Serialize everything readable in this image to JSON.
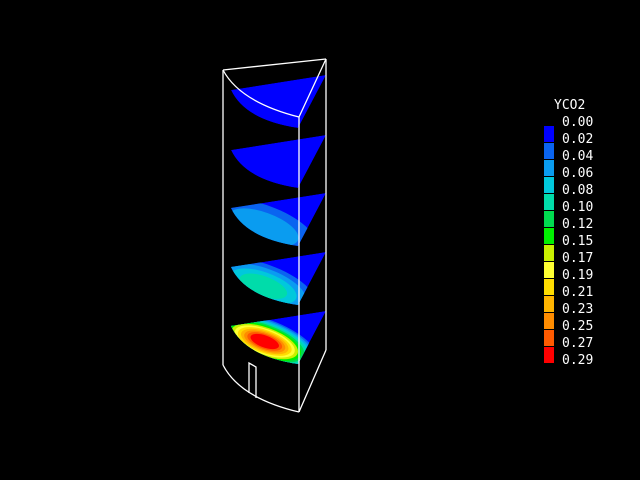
{
  "chart_data": {
    "type": "heatmap",
    "title": "",
    "legend": {
      "title": "YCO2",
      "placement": "right",
      "tick_labels": [
        "0.00",
        "0.02",
        "0.04",
        "0.06",
        "0.08",
        "0.10",
        "0.12",
        "0.15",
        "0.17",
        "0.19",
        "0.21",
        "0.23",
        "0.25",
        "0.27",
        "0.29"
      ],
      "colors": [
        "#0000ff",
        "#0a64f0",
        "#0a9cf0",
        "#00c8dc",
        "#00dcaa",
        "#00dc50",
        "#00f000",
        "#c8f000",
        "#ffff32",
        "#ffdc00",
        "#ffb400",
        "#ff8c00",
        "#ff5a00",
        "#ff0000"
      ],
      "range": [
        0.0,
        0.29
      ]
    },
    "slices": [
      {
        "level": 1,
        "max_value": 0.0
      },
      {
        "level": 2,
        "max_value": 0.0
      },
      {
        "level": 3,
        "max_value": 0.04
      },
      {
        "level": 4,
        "max_value": 0.1
      },
      {
        "level": 5,
        "max_value": 0.29
      }
    ]
  }
}
